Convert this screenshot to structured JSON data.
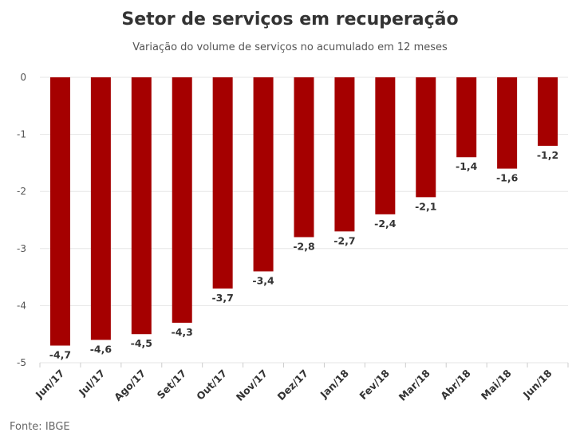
{
  "chart_data": {
    "type": "bar",
    "title": "Setor de serviços em recuperação",
    "subtitle": "Variação do volume de serviços no acumulado em 12 meses",
    "categories": [
      "Jun/17",
      "Jul/17",
      "Ago/17",
      "Set/17",
      "Out/17",
      "Nov/17",
      "Dez/17",
      "Jan/18",
      "Fev/18",
      "Mar/18",
      "Abr/18",
      "Mai/18",
      "Jun/18"
    ],
    "values": [
      -4.7,
      -4.6,
      -4.5,
      -4.3,
      -3.7,
      -3.4,
      -2.8,
      -2.7,
      -2.4,
      -2.1,
      -1.4,
      -1.6,
      -1.2
    ],
    "data_labels": [
      "-4,7",
      "-4,6",
      "-4,5",
      "-4,3",
      "-3,7",
      "-3,4",
      "-2,8",
      "-2,7",
      "-2,4",
      "-2,1",
      "-1,4",
      "-1,6",
      "-1,2"
    ],
    "yticks": [
      0,
      -1,
      -2,
      -3,
      -4,
      -5
    ],
    "ytick_labels": [
      "0",
      "-1",
      "-2",
      "-3",
      "-4",
      "-5"
    ],
    "ylim": [
      -5,
      0
    ],
    "grid": true,
    "bar_color": "#a50000",
    "source": "Fonte: IBGE"
  }
}
